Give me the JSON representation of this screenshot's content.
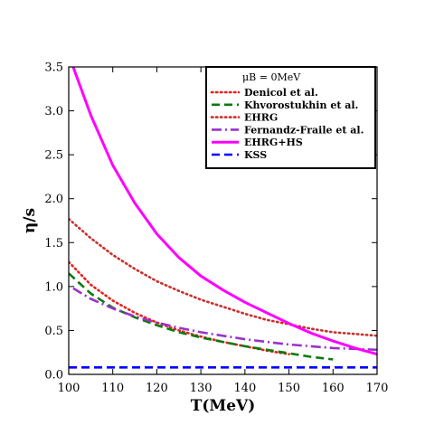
{
  "chart_data": {
    "type": "line",
    "xlabel": "T(MeV)",
    "ylabel": "η/s",
    "xlim": [
      100,
      170
    ],
    "ylim": [
      0,
      3.5
    ],
    "xticks": [
      100,
      110,
      120,
      130,
      140,
      150,
      160,
      170
    ],
    "yticks": [
      0.0,
      0.5,
      1.0,
      1.5,
      2.0,
      2.5,
      3.0,
      3.5
    ],
    "grid": false,
    "legend": {
      "placement": "top-right",
      "title": "μB = 0MeV"
    },
    "series": [
      {
        "name": "Denicol et al.",
        "color": "#e8211d",
        "style": "dotted",
        "x": [
          100,
          105,
          110,
          115,
          120,
          125,
          130,
          135,
          140,
          145,
          150
        ],
        "y": [
          1.28,
          1.02,
          0.84,
          0.7,
          0.59,
          0.5,
          0.43,
          0.37,
          0.32,
          0.27,
          0.23
        ]
      },
      {
        "name": "Khvorostukhin et al.",
        "color": "#0b7a0b",
        "style": "dashed",
        "x": [
          100,
          105,
          110,
          115,
          120,
          125,
          130,
          135,
          140,
          145,
          150,
          155,
          160
        ],
        "y": [
          1.15,
          0.92,
          0.76,
          0.65,
          0.56,
          0.48,
          0.42,
          0.37,
          0.32,
          0.28,
          0.24,
          0.2,
          0.17
        ]
      },
      {
        "name": "EHRG",
        "color": "#c9302c",
        "style": "dotted",
        "x": [
          100,
          105,
          110,
          115,
          120,
          125,
          130,
          135,
          140,
          145,
          150,
          155,
          160,
          165,
          170
        ],
        "y": [
          1.77,
          1.55,
          1.36,
          1.2,
          1.06,
          0.95,
          0.85,
          0.77,
          0.69,
          0.62,
          0.57,
          0.52,
          0.48,
          0.46,
          0.44
        ]
      },
      {
        "name": "Fernandz-Fraile et al.",
        "color": "#9932cc",
        "style": "dashdot",
        "x": [
          101,
          105,
          110,
          115,
          120,
          125,
          130,
          135,
          140,
          145,
          150,
          155,
          160,
          165,
          170
        ],
        "y": [
          0.98,
          0.86,
          0.75,
          0.66,
          0.59,
          0.53,
          0.48,
          0.44,
          0.4,
          0.37,
          0.34,
          0.32,
          0.3,
          0.29,
          0.28
        ]
      },
      {
        "name": "EHRG+HS",
        "color": "#ff00ff",
        "style": "solid",
        "x": [
          101,
          105,
          110,
          115,
          120,
          125,
          130,
          135,
          140,
          145,
          150,
          155,
          160,
          165,
          170
        ],
        "y": [
          3.5,
          2.95,
          2.38,
          1.95,
          1.6,
          1.33,
          1.12,
          0.96,
          0.82,
          0.7,
          0.58,
          0.47,
          0.38,
          0.3,
          0.23
        ]
      },
      {
        "name": "KSS",
        "color": "#0000ff",
        "style": "dashed",
        "x": [
          100,
          170
        ],
        "y": [
          0.0796,
          0.0796
        ]
      }
    ]
  }
}
